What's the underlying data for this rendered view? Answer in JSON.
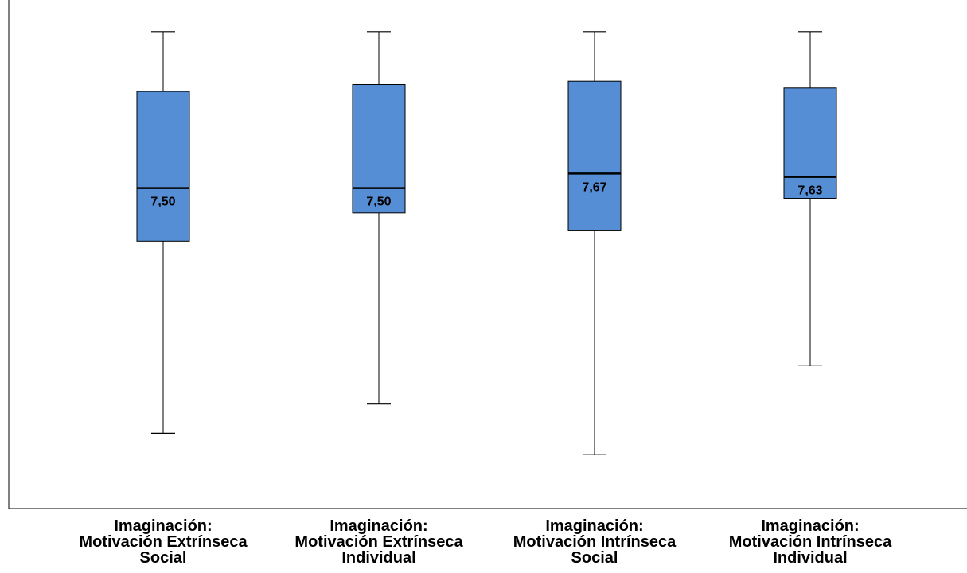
{
  "chart_data": {
    "type": "box",
    "categories": [
      [
        "Imaginación:",
        "Motivación Extrínseca",
        "Social"
      ],
      [
        "Imaginación:",
        "Motivación Extrínseca",
        "Individual"
      ],
      [
        "Imaginación:",
        "Motivación Intrínseca",
        "Social"
      ],
      [
        "Imaginación:",
        "Motivación Intrínseca",
        "Individual"
      ]
    ],
    "boxes": [
      {
        "whisker_low": 4.63,
        "q1": 6.88,
        "median": 7.5,
        "q3": 8.63,
        "whisker_high": 9.33,
        "median_label": "7,50"
      },
      {
        "whisker_low": 4.98,
        "q1": 7.21,
        "median": 7.5,
        "q3": 8.71,
        "whisker_high": 9.33,
        "median_label": "7,50"
      },
      {
        "whisker_low": 4.38,
        "q1": 7.0,
        "median": 7.67,
        "q3": 8.75,
        "whisker_high": 9.33,
        "median_label": "7,67"
      },
      {
        "whisker_low": 5.42,
        "q1": 7.38,
        "median": 7.63,
        "q3": 8.67,
        "whisker_high": 9.33,
        "median_label": "7,63"
      }
    ],
    "ylim": [
      3.75,
      9.7
    ],
    "box_color": "#558ed5",
    "grid": false,
    "legend": "none"
  }
}
